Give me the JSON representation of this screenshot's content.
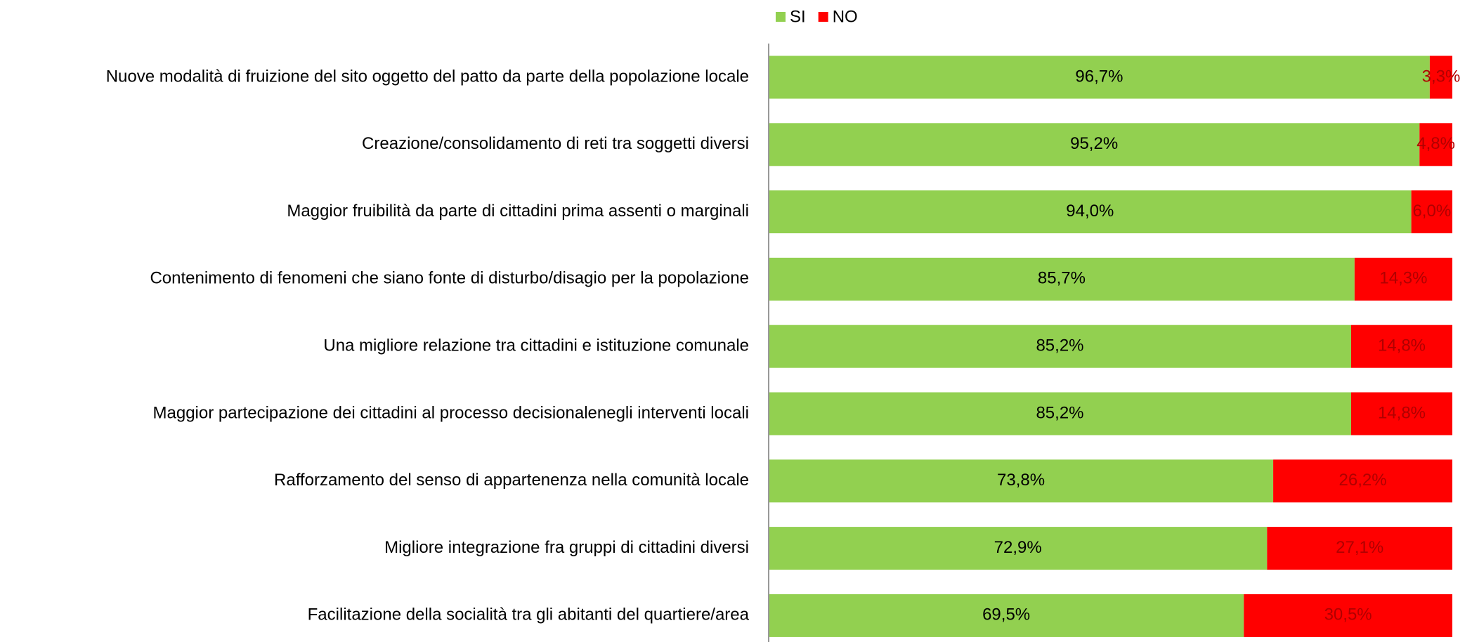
{
  "chart_data": {
    "type": "stacked-barh",
    "categories": [
      "Nuove modalità di fruizione del sito oggetto del patto da parte della popolazione locale",
      "Creazione/consolidamento di reti tra soggetti diversi",
      "Maggior fruibilità da parte di cittadini prima assenti o marginali",
      "Contenimento di fenomeni che siano fonte di disturbo/disagio per la popolazione ",
      "Una migliore relazione tra cittadini e istituzione comunale",
      "Maggior partecipazione dei cittadini al processo decisionalenegli interventi locali",
      "Rafforzamento del senso di appartenenza nella comunità locale",
      "Migliore integrazione fra gruppi di cittadini diversi",
      "Facilitazione della socialità tra gli abitanti del quartiere/area"
    ],
    "series": [
      {
        "name": "SI",
        "color": "#92d050",
        "values": [
          96.7,
          95.2,
          94.0,
          85.7,
          85.2,
          85.2,
          73.8,
          72.9,
          69.5
        ],
        "value_labels": [
          "96,7%",
          "95,2%",
          "94,0%",
          "85,7%",
          "85,2%",
          "85,2%",
          "73,8%",
          "72,9%",
          "69,5%"
        ]
      },
      {
        "name": "NO",
        "color": "#ff0000",
        "values": [
          3.3,
          4.8,
          6.0,
          14.3,
          14.8,
          14.8,
          26.2,
          27.1,
          30.5
        ],
        "value_labels": [
          "3,3%",
          "4,8%",
          "6,0%",
          "14,3%",
          "14,8%",
          "14,8%",
          "26,2%",
          "27,1%",
          "30,5%"
        ]
      }
    ],
    "xlim": [
      0,
      100
    ],
    "legend": "top"
  }
}
